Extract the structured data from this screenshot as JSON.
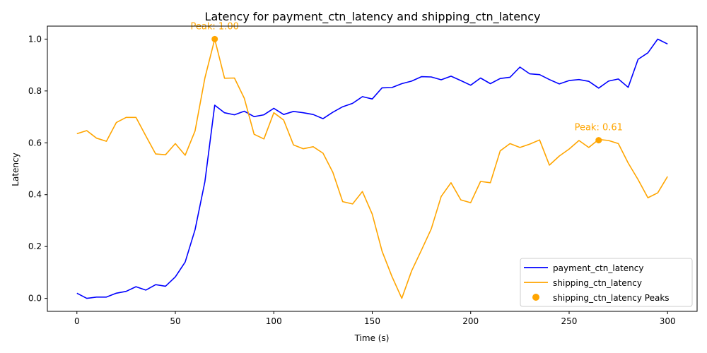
{
  "chart_data": {
    "type": "line",
    "title": "Latency for payment_ctn_latency and shipping_ctn_latency",
    "xlabel": "Time (s)",
    "ylabel": "Latency",
    "xlim": [
      -15,
      315
    ],
    "ylim": [
      -0.05,
      1.05
    ],
    "x_ticks": [
      0,
      50,
      100,
      150,
      200,
      250,
      300
    ],
    "y_ticks": [
      0.0,
      0.2,
      0.4,
      0.6,
      0.8,
      1.0
    ],
    "x_tick_labels": [
      "0",
      "50",
      "100",
      "150",
      "200",
      "250",
      "300"
    ],
    "y_tick_labels": [
      "0.0",
      "0.2",
      "0.4",
      "0.6",
      "0.8",
      "1.0"
    ],
    "grid": false,
    "legend_position": "lower-right",
    "x": [
      0,
      5,
      10,
      15,
      20,
      25,
      30,
      35,
      40,
      45,
      50,
      55,
      60,
      65,
      70,
      75,
      80,
      85,
      90,
      95,
      100,
      105,
      110,
      115,
      120,
      125,
      130,
      135,
      140,
      145,
      150,
      155,
      160,
      165,
      170,
      175,
      180,
      185,
      190,
      195,
      200,
      205,
      210,
      215,
      220,
      225,
      230,
      235,
      240,
      245,
      250,
      255,
      260,
      265,
      270,
      275,
      280,
      285,
      290,
      295,
      300
    ],
    "series": [
      {
        "name": "payment_ctn_latency",
        "color": "#0000ff",
        "values": [
          0.02,
          0.0,
          0.005,
          0.005,
          0.02,
          0.027,
          0.045,
          0.032,
          0.053,
          0.047,
          0.083,
          0.14,
          0.265,
          0.45,
          0.745,
          0.716,
          0.708,
          0.722,
          0.701,
          0.708,
          0.733,
          0.709,
          0.721,
          0.716,
          0.709,
          0.693,
          0.718,
          0.739,
          0.752,
          0.778,
          0.769,
          0.812,
          0.813,
          0.828,
          0.838,
          0.855,
          0.854,
          0.843,
          0.857,
          0.84,
          0.822,
          0.85,
          0.828,
          0.848,
          0.853,
          0.892,
          0.866,
          0.863,
          0.844,
          0.827,
          0.84,
          0.844,
          0.837,
          0.811,
          0.838,
          0.846,
          0.814,
          0.922,
          0.947,
          1.0,
          0.981
        ]
      },
      {
        "name": "shipping_ctn_latency",
        "color": "#ffa500",
        "values": [
          0.635,
          0.647,
          0.618,
          0.606,
          0.678,
          0.698,
          0.698,
          0.627,
          0.557,
          0.554,
          0.597,
          0.552,
          0.646,
          0.85,
          1.0,
          0.849,
          0.85,
          0.772,
          0.633,
          0.615,
          0.716,
          0.688,
          0.592,
          0.577,
          0.585,
          0.56,
          0.486,
          0.373,
          0.364,
          0.412,
          0.325,
          0.182,
          0.085,
          0.0,
          0.106,
          0.186,
          0.268,
          0.393,
          0.446,
          0.38,
          0.369,
          0.451,
          0.446,
          0.569,
          0.597,
          0.582,
          0.595,
          0.611,
          0.514,
          0.549,
          0.576,
          0.609,
          0.582,
          0.613,
          0.609,
          0.597,
          0.522,
          0.458,
          0.388,
          0.407,
          0.47
        ]
      }
    ],
    "peaks": {
      "legend": "shipping_ctn_latency Peaks",
      "color": "#ffa500",
      "points": [
        {
          "x": 70,
          "y": 1.0,
          "label": "Peak: 1.00"
        },
        {
          "x": 265,
          "y": 0.61,
          "label": "Peak: 0.61"
        }
      ]
    }
  }
}
